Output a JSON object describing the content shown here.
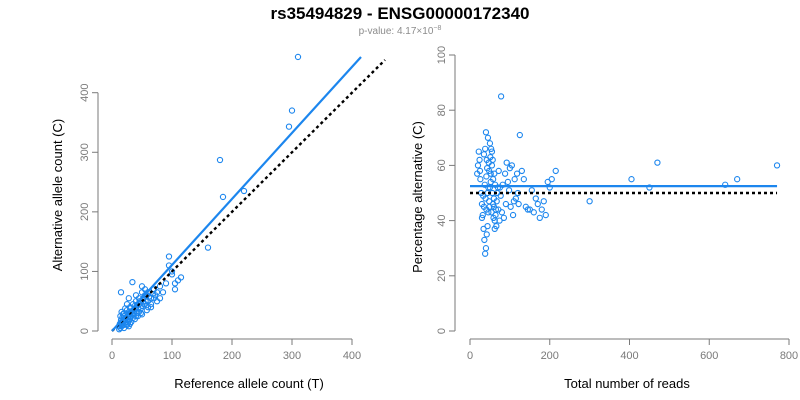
{
  "title": "rs35494829 - ENSG00000172340",
  "subtitle": {
    "prefix": "p-value: 4.17×10",
    "exponent": "−8"
  },
  "colors": {
    "points": "#1c86ee",
    "fit": "#1c86ee",
    "reference": "#000000",
    "axes": "#7a7a7a"
  },
  "chart_data": [
    {
      "type": "scatter",
      "xlabel": "Reference allele count (T)",
      "ylabel": "Alternative allele count (C)",
      "xlim": [
        0,
        420
      ],
      "ylim": [
        0,
        470
      ],
      "xticks": [
        0,
        100,
        200,
        300,
        400
      ],
      "yticks": [
        0,
        100,
        200,
        300,
        400
      ],
      "grid": false,
      "fit_line": {
        "x0": 0,
        "y0": 0,
        "x1": 415,
        "y1": 460
      },
      "reference_line": {
        "x0": 0,
        "y0": 0,
        "x1": 455,
        "y1": 455
      },
      "points": [
        [
          310,
          460
        ],
        [
          300,
          370
        ],
        [
          295,
          343
        ],
        [
          180,
          287
        ],
        [
          185,
          225
        ],
        [
          220,
          235
        ],
        [
          160,
          140
        ],
        [
          95,
          125
        ],
        [
          95,
          110
        ],
        [
          100,
          100
        ],
        [
          100,
          95
        ],
        [
          105,
          80
        ],
        [
          105,
          70
        ],
        [
          110,
          85
        ],
        [
          115,
          90
        ],
        [
          90,
          80
        ],
        [
          85,
          65
        ],
        [
          75,
          65
        ],
        [
          80,
          75
        ],
        [
          70,
          70
        ],
        [
          65,
          55
        ],
        [
          60,
          50
        ],
        [
          55,
          60
        ],
        [
          55,
          70
        ],
        [
          50,
          65
        ],
        [
          50,
          75
        ],
        [
          45,
          55
        ],
        [
          40,
          50
        ],
        [
          45,
          45
        ],
        [
          40,
          40
        ],
        [
          35,
          35
        ],
        [
          35,
          45
        ],
        [
          30,
          40
        ],
        [
          30,
          30
        ],
        [
          30,
          25
        ],
        [
          25,
          35
        ],
        [
          25,
          45
        ],
        [
          28,
          55
        ],
        [
          20,
          30
        ],
        [
          20,
          25
        ],
        [
          15,
          65
        ],
        [
          20,
          20
        ],
        [
          18,
          15
        ],
        [
          15,
          10
        ],
        [
          13,
          12
        ],
        [
          12,
          8
        ],
        [
          14,
          5
        ],
        [
          15,
          18
        ],
        [
          17,
          22
        ],
        [
          22,
          15
        ],
        [
          25,
          10
        ],
        [
          28,
          18
        ],
        [
          30,
          12
        ],
        [
          35,
          28
        ],
        [
          38,
          20
        ],
        [
          42,
          30
        ],
        [
          45,
          32
        ],
        [
          48,
          38
        ],
        [
          50,
          42
        ],
        [
          52,
          55
        ],
        [
          55,
          45
        ],
        [
          58,
          35
        ],
        [
          60,
          40
        ],
        [
          62,
          58
        ],
        [
          65,
          45
        ],
        [
          70,
          55
        ],
        [
          72,
          60
        ],
        [
          75,
          50
        ],
        [
          80,
          55
        ],
        [
          50,
          28
        ],
        [
          40,
          25
        ],
        [
          35,
          22
        ],
        [
          32,
          15
        ],
        [
          28,
          8
        ],
        [
          24,
          12
        ],
        [
          20,
          5
        ],
        [
          18,
          28
        ],
        [
          16,
          32
        ],
        [
          22,
          38
        ],
        [
          26,
          28
        ],
        [
          34,
          82
        ],
        [
          40,
          60
        ],
        [
          44,
          38
        ],
        [
          60,
          65
        ],
        [
          68,
          62
        ],
        [
          56,
          50
        ],
        [
          46,
          50
        ],
        [
          38,
          42
        ],
        [
          30,
          20
        ],
        [
          19,
          10
        ],
        [
          23,
          22
        ],
        [
          27,
          15
        ],
        [
          33,
          33
        ],
        [
          37,
          30
        ],
        [
          52,
          48
        ],
        [
          43,
          25
        ],
        [
          48,
          30
        ],
        [
          65,
          40
        ],
        [
          58,
          60
        ],
        [
          14,
          25
        ],
        [
          16,
          8
        ],
        [
          21,
          18
        ],
        [
          12,
          3
        ],
        [
          15,
          14
        ],
        [
          25,
          20
        ],
        [
          29,
          32
        ],
        [
          31,
          38
        ],
        [
          36,
          26
        ],
        [
          39,
          36
        ],
        [
          42,
          44
        ]
      ]
    },
    {
      "type": "scatter",
      "xlabel": "Total number of reads",
      "ylabel": "Percentage alternative (C)",
      "xlim": [
        0,
        800
      ],
      "ylim": [
        0,
        100
      ],
      "xticks": [
        0,
        200,
        400,
        600,
        800
      ],
      "yticks": [
        0,
        20,
        40,
        60,
        80,
        100
      ],
      "grid": false,
      "fit_line": {
        "y": 52.5
      },
      "reference_line": {
        "y": 50
      },
      "points": [
        [
          770,
          60
        ],
        [
          670,
          55
        ],
        [
          640,
          53
        ],
        [
          470,
          61
        ],
        [
          450,
          52
        ],
        [
          405,
          55
        ],
        [
          300,
          47
        ],
        [
          215,
          58
        ],
        [
          205,
          55
        ],
        [
          200,
          52
        ],
        [
          195,
          54
        ],
        [
          185,
          47
        ],
        [
          180,
          44
        ],
        [
          175,
          41
        ],
        [
          170,
          46
        ],
        [
          165,
          48
        ],
        [
          160,
          43
        ],
        [
          150,
          44
        ],
        [
          140,
          45
        ],
        [
          135,
          55
        ],
        [
          130,
          58
        ],
        [
          125,
          71
        ],
        [
          120,
          50
        ],
        [
          115,
          48
        ],
        [
          110,
          47
        ],
        [
          105,
          60
        ],
        [
          100,
          59
        ],
        [
          95,
          54
        ],
        [
          90,
          46
        ],
        [
          85,
          41
        ],
        [
          80,
          43
        ],
        [
          78,
          85
        ],
        [
          75,
          52
        ],
        [
          72,
          58
        ],
        [
          70,
          52
        ],
        [
          68,
          50
        ],
        [
          65,
          44
        ],
        [
          62,
          40
        ],
        [
          60,
          48
        ],
        [
          58,
          55
        ],
        [
          55,
          60
        ],
        [
          52,
          57
        ],
        [
          50,
          52
        ],
        [
          48,
          47
        ],
        [
          46,
          43
        ],
        [
          44,
          38
        ],
        [
          42,
          35
        ],
        [
          40,
          30
        ],
        [
          38,
          28
        ],
        [
          36,
          33
        ],
        [
          34,
          37
        ],
        [
          32,
          42
        ],
        [
          30,
          46
        ],
        [
          28,
          50
        ],
        [
          26,
          55
        ],
        [
          25,
          58
        ],
        [
          24,
          62
        ],
        [
          22,
          65
        ],
        [
          20,
          60
        ],
        [
          18,
          57
        ],
        [
          40,
          72
        ],
        [
          45,
          70
        ],
        [
          50,
          68
        ],
        [
          55,
          65
        ],
        [
          38,
          66
        ],
        [
          42,
          62
        ],
        [
          48,
          58
        ],
        [
          52,
          54
        ],
        [
          56,
          50
        ],
        [
          60,
          45
        ],
        [
          64,
          42
        ],
        [
          66,
          38
        ],
        [
          35,
          45
        ],
        [
          30,
          41
        ],
        [
          33,
          49
        ],
        [
          37,
          53
        ],
        [
          41,
          56
        ],
        [
          43,
          59
        ],
        [
          47,
          61
        ],
        [
          51,
          63
        ],
        [
          53,
          66
        ],
        [
          57,
          62
        ],
        [
          61,
          57
        ],
        [
          63,
          53
        ],
        [
          67,
          47
        ],
        [
          71,
          44
        ],
        [
          74,
          40
        ],
        [
          77,
          49
        ],
        [
          82,
          53
        ],
        [
          88,
          57
        ],
        [
          92,
          61
        ],
        [
          98,
          51
        ],
        [
          102,
          45
        ],
        [
          108,
          42
        ],
        [
          112,
          55
        ],
        [
          118,
          57
        ],
        [
          122,
          46
        ],
        [
          145,
          44
        ],
        [
          155,
          51
        ],
        [
          190,
          42
        ],
        [
          35,
          64
        ],
        [
          39,
          48
        ],
        [
          44,
          50
        ],
        [
          49,
          45
        ],
        [
          54,
          43
        ],
        [
          59,
          41
        ],
        [
          62,
          37
        ],
        [
          58,
          46
        ],
        [
          46,
          52
        ],
        [
          41,
          44
        ]
      ]
    }
  ]
}
